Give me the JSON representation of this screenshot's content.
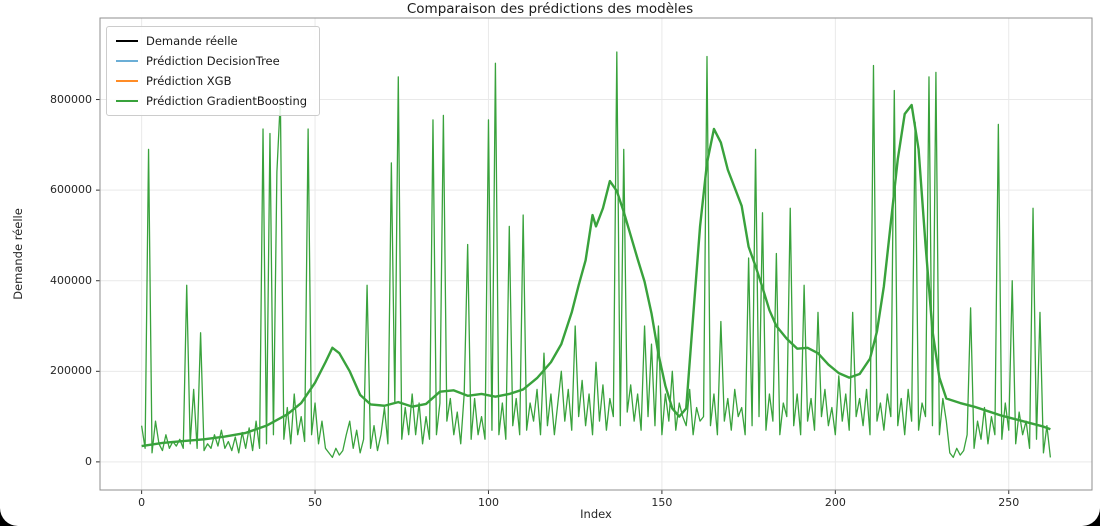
{
  "window": {
    "background": "#000000"
  },
  "chart_data": {
    "type": "line",
    "title": "Comparaison des prédictions des modèles",
    "xlabel": "Index",
    "ylabel": "Demande réelle",
    "xlim": [
      -12,
      274
    ],
    "ylim": [
      -62000,
      980000
    ],
    "x_ticks": [
      0,
      50,
      100,
      150,
      200,
      250
    ],
    "y_ticks": [
      0,
      200000,
      400000,
      600000,
      800000
    ],
    "grid": true,
    "legend_position": "upper-left",
    "colors": {
      "grid": "#e9e9e9",
      "spine": "#8f8f8f",
      "tick": "#333333",
      "spiky_line": "#39a23c",
      "smooth_line": "#39a23c"
    },
    "series": [
      {
        "name": "Demande réelle",
        "color": "#000000",
        "values_key": "actual"
      },
      {
        "name": "Prédiction DecisionTree",
        "color": "#6baed6",
        "values_key": "actual"
      },
      {
        "name": "Prédiction XGB",
        "color": "#ff8c26",
        "values_key": "actual"
      },
      {
        "name": "Prédiction GradientBoosting",
        "color": "#39a23c",
        "values_key": "gradient_boosting"
      }
    ],
    "series_data": {
      "actual": {
        "x_start": 0,
        "x_step": 1,
        "values": [
          80000,
          30000,
          690000,
          20000,
          90000,
          40000,
          25000,
          60000,
          30000,
          45000,
          35000,
          50000,
          30000,
          390000,
          40000,
          160000,
          30000,
          285000,
          25000,
          40000,
          30000,
          60000,
          35000,
          70000,
          30000,
          45000,
          25000,
          55000,
          20000,
          65000,
          30000,
          75000,
          25000,
          90000,
          30000,
          735000,
          40000,
          725000,
          60000,
          640000,
          800000,
          50000,
          120000,
          40000,
          150000,
          60000,
          100000,
          45000,
          735000,
          60000,
          130000,
          40000,
          90000,
          30000,
          20000,
          10000,
          30000,
          15000,
          25000,
          60000,
          90000,
          30000,
          70000,
          20000,
          50000,
          390000,
          30000,
          80000,
          25000,
          60000,
          120000,
          40000,
          660000,
          130000,
          850000,
          50000,
          120000,
          60000,
          150000,
          60000,
          130000,
          40000,
          100000,
          50000,
          755000,
          60000,
          130000,
          765000,
          90000,
          140000,
          60000,
          110000,
          40000,
          150000,
          480000,
          50000,
          140000,
          60000,
          100000,
          50000,
          755000,
          70000,
          880000,
          60000,
          130000,
          50000,
          520000,
          80000,
          140000,
          60000,
          545000,
          70000,
          130000,
          90000,
          160000,
          60000,
          240000,
          80000,
          150000,
          60000,
          130000,
          200000,
          90000,
          160000,
          70000,
          300000,
          100000,
          180000,
          80000,
          150000,
          60000,
          220000,
          90000,
          170000,
          70000,
          140000,
          100000,
          905000,
          80000,
          690000,
          110000,
          170000,
          90000,
          150000,
          70000,
          300000,
          100000,
          260000,
          80000,
          300000,
          60000,
          150000,
          90000,
          200000,
          70000,
          130000,
          100000,
          80000,
          160000,
          60000,
          120000,
          90000,
          100000,
          895000,
          80000,
          150000,
          60000,
          310000,
          90000,
          140000,
          70000,
          160000,
          100000,
          120000,
          60000,
          450000,
          80000,
          690000,
          100000,
          550000,
          70000,
          150000,
          90000,
          460000,
          60000,
          130000,
          100000,
          560000,
          80000,
          150000,
          60000,
          390000,
          90000,
          140000,
          70000,
          330000,
          100000,
          160000,
          80000,
          120000,
          60000,
          190000,
          90000,
          150000,
          70000,
          330000,
          100000,
          140000,
          80000,
          160000,
          60000,
          875000,
          90000,
          130000,
          70000,
          150000,
          100000,
          820000,
          80000,
          140000,
          60000,
          160000,
          90000,
          750000,
          70000,
          130000,
          100000,
          850000,
          80000,
          860000,
          60000,
          140000,
          90000,
          20000,
          10000,
          30000,
          15000,
          25000,
          60000,
          340000,
          30000,
          90000,
          50000,
          120000,
          40000,
          100000,
          60000,
          745000,
          50000,
          130000,
          70000,
          400000,
          40000,
          110000,
          60000,
          90000,
          30000,
          560000,
          50000,
          330000,
          20000,
          80000,
          10000
        ]
      },
      "gradient_boosting": {
        "points": [
          [
            0,
            35000
          ],
          [
            6,
            42000
          ],
          [
            12,
            46000
          ],
          [
            18,
            50000
          ],
          [
            24,
            56000
          ],
          [
            30,
            64000
          ],
          [
            36,
            80000
          ],
          [
            42,
            105000
          ],
          [
            46,
            130000
          ],
          [
            50,
            175000
          ],
          [
            53,
            220000
          ],
          [
            55,
            252000
          ],
          [
            57,
            240000
          ],
          [
            60,
            200000
          ],
          [
            63,
            148000
          ],
          [
            66,
            127000
          ],
          [
            70,
            124000
          ],
          [
            74,
            132000
          ],
          [
            78,
            122000
          ],
          [
            82,
            128000
          ],
          [
            86,
            155000
          ],
          [
            90,
            158000
          ],
          [
            94,
            146000
          ],
          [
            98,
            150000
          ],
          [
            102,
            144000
          ],
          [
            106,
            150000
          ],
          [
            110,
            160000
          ],
          [
            114,
            185000
          ],
          [
            118,
            220000
          ],
          [
            121,
            260000
          ],
          [
            124,
            330000
          ],
          [
            126,
            390000
          ],
          [
            128,
            445000
          ],
          [
            130,
            545000
          ],
          [
            131,
            520000
          ],
          [
            133,
            560000
          ],
          [
            135,
            620000
          ],
          [
            137,
            598000
          ],
          [
            139,
            552000
          ],
          [
            141,
            500000
          ],
          [
            143,
            448000
          ],
          [
            145,
            398000
          ],
          [
            147,
            328000
          ],
          [
            149,
            238000
          ],
          [
            151,
            168000
          ],
          [
            153,
            118000
          ],
          [
            155,
            100000
          ],
          [
            157,
            118000
          ],
          [
            159,
            320000
          ],
          [
            161,
            520000
          ],
          [
            163,
            660000
          ],
          [
            165,
            735000
          ],
          [
            167,
            705000
          ],
          [
            169,
            645000
          ],
          [
            171,
            605000
          ],
          [
            173,
            565000
          ],
          [
            175,
            475000
          ],
          [
            177,
            432000
          ],
          [
            179,
            385000
          ],
          [
            181,
            335000
          ],
          [
            183,
            300000
          ],
          [
            186,
            272000
          ],
          [
            189,
            250000
          ],
          [
            192,
            252000
          ],
          [
            195,
            240000
          ],
          [
            198,
            215000
          ],
          [
            201,
            196000
          ],
          [
            204,
            186000
          ],
          [
            207,
            194000
          ],
          [
            210,
            228000
          ],
          [
            212,
            288000
          ],
          [
            214,
            388000
          ],
          [
            216,
            528000
          ],
          [
            218,
            668000
          ],
          [
            220,
            768000
          ],
          [
            222,
            788000
          ],
          [
            224,
            690000
          ],
          [
            226,
            480000
          ],
          [
            228,
            290000
          ],
          [
            230,
            186000
          ],
          [
            232,
            140000
          ],
          [
            236,
            130000
          ],
          [
            240,
            122000
          ],
          [
            244,
            112000
          ],
          [
            248,
            102000
          ],
          [
            252,
            94000
          ],
          [
            256,
            86000
          ],
          [
            260,
            78000
          ],
          [
            262,
            72000
          ]
        ]
      }
    }
  }
}
